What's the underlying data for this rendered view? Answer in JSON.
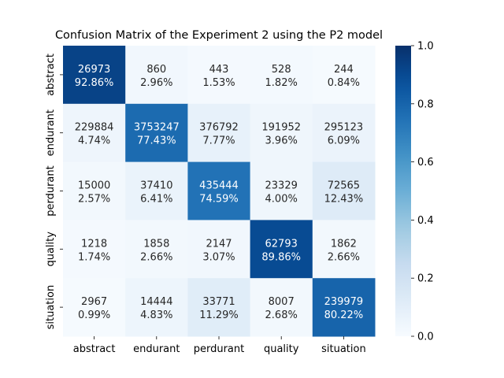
{
  "chart_data": {
    "type": "heatmap",
    "title": "Confusion Matrix of the Experiment 2 using the P2 model",
    "xlabel": "",
    "ylabel": "",
    "x_categories": [
      "abstract",
      "endurant",
      "perdurant",
      "quality",
      "situation"
    ],
    "y_categories": [
      "abstract",
      "endurant",
      "perdurant",
      "quality",
      "situation"
    ],
    "counts": [
      [
        26973,
        860,
        443,
        528,
        244
      ],
      [
        229884,
        3753247,
        376792,
        191952,
        295123
      ],
      [
        15000,
        37410,
        435444,
        23329,
        72565
      ],
      [
        1218,
        1858,
        2147,
        62793,
        1862
      ],
      [
        2967,
        14444,
        33771,
        8007,
        239979
      ]
    ],
    "percent_labels": [
      [
        "92.86%",
        "2.96%",
        "1.53%",
        "1.82%",
        "0.84%"
      ],
      [
        "4.74%",
        "77.43%",
        "7.77%",
        "3.96%",
        "6.09%"
      ],
      [
        "2.57%",
        "6.41%",
        "74.59%",
        "4.00%",
        "12.43%"
      ],
      [
        "1.74%",
        "2.66%",
        "3.07%",
        "89.86%",
        "2.66%"
      ],
      [
        "0.99%",
        "4.83%",
        "11.29%",
        "2.68%",
        "80.22%"
      ]
    ],
    "values": [
      [
        0.9286,
        0.0296,
        0.0153,
        0.0182,
        0.0084
      ],
      [
        0.0474,
        0.7743,
        0.0777,
        0.0396,
        0.0609
      ],
      [
        0.0257,
        0.0641,
        0.7459,
        0.04,
        0.1243
      ],
      [
        0.0174,
        0.0266,
        0.0307,
        0.8986,
        0.0266
      ],
      [
        0.0099,
        0.0483,
        0.1129,
        0.0268,
        0.8022
      ]
    ],
    "colorbar": {
      "range": [
        0.0,
        1.0
      ],
      "ticks": [
        "0.0",
        "0.2",
        "0.4",
        "0.6",
        "0.8",
        "1.0"
      ],
      "colormap": "Blues"
    },
    "grid": false
  }
}
